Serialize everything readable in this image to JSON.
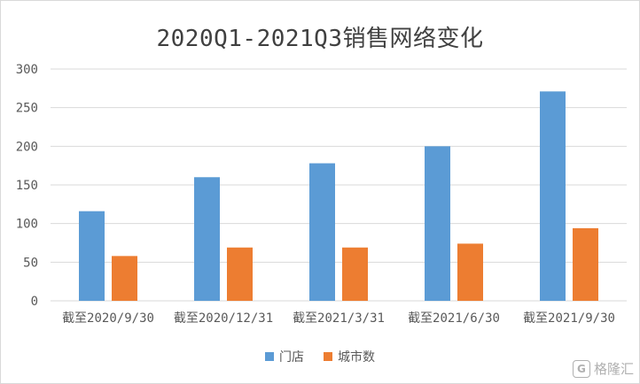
{
  "chart_data": {
    "type": "bar",
    "title": "2020Q1-2021Q3销售网络变化",
    "categories": [
      "截至2020/9/30",
      "截至2020/12/31",
      "截至2021/3/31",
      "截至2021/6/30",
      "截至2021/9/30"
    ],
    "series": [
      {
        "name": "门店",
        "values": [
          116,
          160,
          178,
          200,
          271
        ],
        "color": "#5b9bd5"
      },
      {
        "name": "城市数",
        "values": [
          58,
          69,
          69,
          74,
          94
        ],
        "color": "#ed7d31"
      }
    ],
    "ylim": [
      0,
      300
    ],
    "yticks": [
      0,
      50,
      100,
      150,
      200,
      250,
      300
    ],
    "grid": true,
    "legend_position": "bottom"
  },
  "watermark": {
    "logo_icon": "gelonghui-logo-icon",
    "logo_char": "G",
    "text": "格隆汇"
  }
}
